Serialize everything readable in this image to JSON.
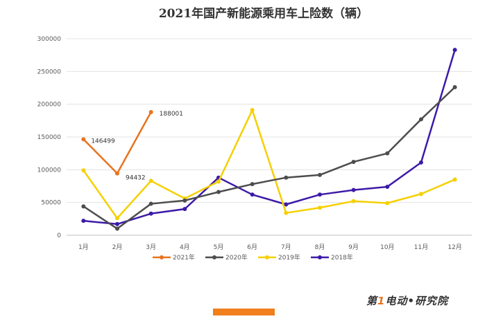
{
  "chart_data": {
    "type": "line",
    "title": "2021年国产新能源乘用车上险数（辆）",
    "categories": [
      "1月",
      "2月",
      "3月",
      "4月",
      "5月",
      "6月",
      "7月",
      "8月",
      "9月",
      "10月",
      "11月",
      "12月"
    ],
    "ylim": [
      0,
      300000
    ],
    "yticks": [
      0,
      50000,
      100000,
      150000,
      200000,
      250000,
      300000
    ],
    "grid": true,
    "legend": "bottom",
    "series": [
      {
        "name": "2021年",
        "color": "#e8731f",
        "values": [
          146499,
          94432,
          188001,
          null,
          null,
          null,
          null,
          null,
          null,
          null,
          null,
          null
        ],
        "labels": [
          "146499",
          "94432",
          "188001"
        ]
      },
      {
        "name": "2020年",
        "color": "#4d4d4d",
        "values": [
          44000,
          10000,
          48000,
          53000,
          66000,
          78000,
          88000,
          92000,
          112000,
          125000,
          177000,
          226000
        ]
      },
      {
        "name": "2019年",
        "color": "#f5d000",
        "values": [
          99000,
          26000,
          83000,
          56000,
          82000,
          191000,
          34000,
          42000,
          52000,
          49000,
          63000,
          85000
        ]
      },
      {
        "name": "2018年",
        "color": "#3d1aa8",
        "values": [
          22000,
          17000,
          33000,
          40000,
          88000,
          62000,
          47000,
          62000,
          69000,
          74000,
          111000,
          283000
        ]
      }
    ]
  },
  "brand": {
    "prefix": "第",
    "one": "1",
    "mid": "电动",
    "dot": "•",
    "suffix": "研究院"
  }
}
